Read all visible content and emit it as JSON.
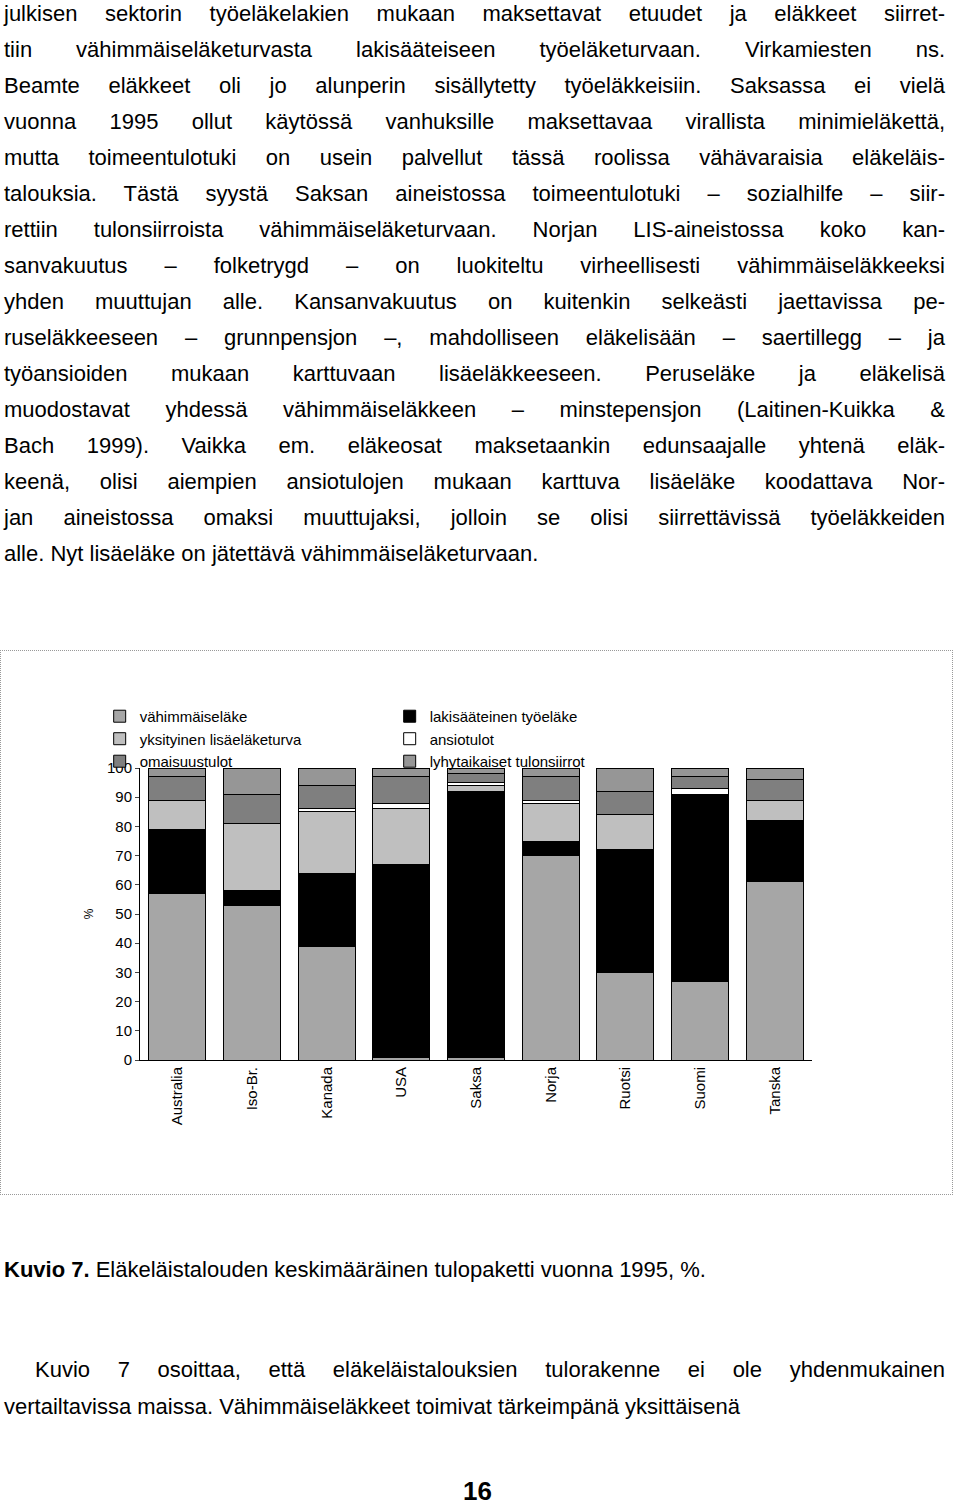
{
  "document": {
    "paragraph1": [
      "julkisen sektorin työeläkelakien mukaan maksettavat etuudet ja eläkkeet siirret-",
      "tiin vähimmäiseläketurvasta lakisääteiseen työeläketurvaan. Virkamiesten ns.",
      "Beamte eläkkeet oli jo alunperin sisällytetty työeläkkeisiin. Saksassa ei vielä",
      "vuonna 1995 ollut käytössä vanhuksille maksettavaa virallista minimieläkettä,",
      "mutta toimeentulotuki on usein palvellut tässä roolissa vähävaraisia eläkeläis-",
      "talouksia. Tästä syystä Saksan aineistossa toimeentulotuki – sozialhilfe – siir-",
      "rettiin tulonsiirroista vähimmäiseläketurvaan. Norjan LIS-aineistossa koko kan-",
      "sanvakuutus – folketrygd – on luokiteltu virheellisesti vähimmäiseläkkeeksi",
      "yhden muuttujan alle. Kansanvakuutus on kuitenkin selkeästi jaettavissa pe-",
      "ruseläkkeeseen – grunnpensjon –, mahdolliseen eläkelisään – saertillegg – ja",
      "työansioiden mukaan karttuvaan lisäeläkkeeseen. Peruseläke ja eläkelisä",
      "muodostavat yhdessä vähimmäiseläkkeen – minstepensjon (Laitinen-Kuikka &",
      "Bach 1999). Vaikka em. eläkeosat maksetaankin edunsaajalle yhtenä eläk-",
      "keenä, olisi aiempien ansiotulojen mukaan karttuva lisäeläke koodattava Nor-",
      "jan aineistossa omaksi muuttujaksi, jolloin se olisi siirrettävissä työeläkkeiden",
      "alle. Nyt lisäeläke on jätettävä vähimmäiseläketurvaan."
    ],
    "caption_label": "Kuvio 7.",
    "caption_text": "Eläkeläistalouden keskimääräinen tulopaketti vuonna 1995, %.",
    "paragraph2": [
      "Kuvio 7 osoittaa, että eläkeläistalouksien tulorakenne ei ole yhdenmukainen",
      "vertailtavissa maissa. Vähimmäiseläkkeet toimivat tärkeimpänä yksittäisenä"
    ],
    "page_number": "16"
  },
  "chart_data": {
    "type": "bar",
    "stacked": true,
    "grid": false,
    "legend": "top-left",
    "ylabel": "%",
    "categories": [
      "Australia",
      "Iso-Br.",
      "Kanada",
      "USA",
      "Saksa",
      "Norja",
      "Ruotsi",
      "Suomi",
      "Tanska"
    ],
    "ylim": [
      0,
      100
    ],
    "yticks": [
      0,
      10,
      20,
      30,
      40,
      50,
      60,
      70,
      80,
      90,
      100
    ],
    "series": [
      {
        "name": "vähimmäiseläke",
        "color": "#a6a6a6",
        "values": [
          57,
          53,
          39,
          1,
          1,
          70,
          30,
          27,
          61
        ]
      },
      {
        "name": "lakisääteinen työeläke",
        "color": "#000000",
        "values": [
          22,
          5,
          25,
          66,
          91,
          5,
          42,
          64,
          21
        ]
      },
      {
        "name": "yksityinen lisäeläketurva",
        "color": "#bfbfbf",
        "values": [
          10,
          23,
          21,
          19,
          2,
          13,
          12,
          0,
          7
        ]
      },
      {
        "name": "ansiotulot",
        "color": "#ffffff",
        "values": [
          0,
          0,
          1,
          2,
          1,
          1,
          0,
          2,
          0
        ]
      },
      {
        "name": "omaisuustulot",
        "color": "#7f7f7f",
        "values": [
          8,
          10,
          8,
          9,
          3,
          8,
          8,
          4,
          7
        ]
      },
      {
        "name": "lyhytaikaiset tulonsiirrot",
        "color": "#969696",
        "values": [
          3,
          9,
          6,
          3,
          2,
          3,
          8,
          3,
          4
        ]
      }
    ]
  }
}
